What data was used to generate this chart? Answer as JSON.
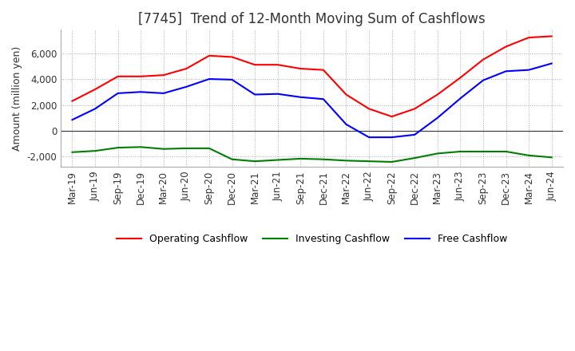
{
  "title": "[7745]  Trend of 12-Month Moving Sum of Cashflows",
  "ylabel": "Amount (million yen)",
  "title_fontsize": 12,
  "label_fontsize": 9,
  "tick_fontsize": 8.5,
  "x_labels": [
    "Mar-19",
    "Jun-19",
    "Sep-19",
    "Dec-19",
    "Mar-20",
    "Jun-20",
    "Sep-20",
    "Dec-20",
    "Mar-21",
    "Jun-21",
    "Sep-21",
    "Dec-21",
    "Mar-22",
    "Jun-22",
    "Sep-22",
    "Dec-22",
    "Mar-23",
    "Jun-23",
    "Sep-23",
    "Dec-23",
    "Mar-24",
    "Jun-24"
  ],
  "operating": [
    2300,
    3200,
    4200,
    4200,
    4300,
    4800,
    5800,
    5700,
    5100,
    5100,
    4800,
    4700,
    2800,
    1700,
    1100,
    1700,
    2800,
    4100,
    5500,
    6500,
    7200,
    7300
  ],
  "investing": [
    -1650,
    -1550,
    -1300,
    -1250,
    -1400,
    -1350,
    -1350,
    -2200,
    -2350,
    -2250,
    -2150,
    -2200,
    -2300,
    -2350,
    -2400,
    -2100,
    -1750,
    -1600,
    -1600,
    -1600,
    -1900,
    -2050
  ],
  "free": [
    850,
    1700,
    2900,
    3000,
    2900,
    3400,
    4000,
    3950,
    2800,
    2850,
    2600,
    2450,
    500,
    -500,
    -500,
    -300,
    1000,
    2500,
    3900,
    4600,
    4700,
    5200
  ],
  "ylim": [
    -2800,
    7800
  ],
  "yticks": [
    -2000,
    0,
    2000,
    4000,
    6000
  ],
  "operating_color": "#ff0000",
  "investing_color": "#008000",
  "free_color": "#0000ff",
  "grid_color": "#aaaaaa",
  "background_color": "#ffffff"
}
